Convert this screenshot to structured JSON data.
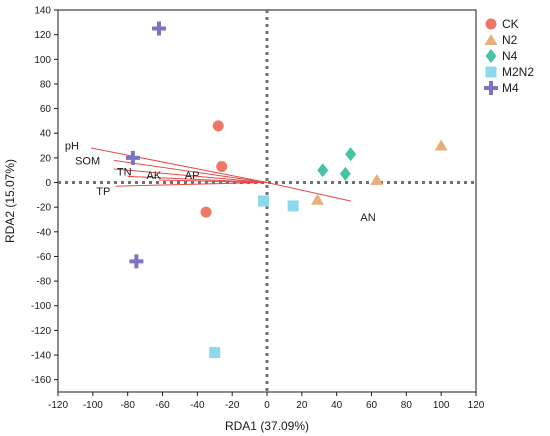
{
  "chart_data": {
    "type": "scatter",
    "xlabel": "RDA1 (37.09%)",
    "ylabel": "RDA2 (15.07%)",
    "xlim": [
      -120,
      120
    ],
    "ylim": [
      -170,
      140
    ],
    "xticks": [
      -120,
      -100,
      -80,
      -60,
      -40,
      -20,
      0,
      20,
      40,
      60,
      80,
      100,
      120
    ],
    "yticks": [
      140,
      120,
      100,
      80,
      60,
      40,
      20,
      0,
      -20,
      -40,
      -60,
      -80,
      -100,
      -120,
      -140,
      -160
    ],
    "zero_lines": "dotted",
    "legend_position": "top-right",
    "series": [
      {
        "name": "CK",
        "marker": "circle",
        "color": "#ee7766",
        "points": [
          [
            -28,
            46
          ],
          [
            -26,
            13
          ],
          [
            -35,
            -24
          ]
        ]
      },
      {
        "name": "N2",
        "marker": "triangle",
        "color": "#e8b078",
        "points": [
          [
            100,
            30
          ],
          [
            63,
            2
          ],
          [
            29,
            -14
          ]
        ]
      },
      {
        "name": "N4",
        "marker": "diamond",
        "color": "#44c4a4",
        "points": [
          [
            32,
            10
          ],
          [
            48,
            23
          ],
          [
            45,
            7
          ]
        ]
      },
      {
        "name": "M2N2",
        "marker": "square",
        "color": "#8ed8ee",
        "points": [
          [
            -2,
            -15
          ],
          [
            15,
            -19
          ],
          [
            -30,
            -138
          ]
        ]
      },
      {
        "name": "M4",
        "marker": "plus",
        "color": "#7c73c2",
        "points": [
          [
            -62,
            125
          ],
          [
            -77,
            20
          ],
          [
            -75,
            -64
          ]
        ]
      }
    ],
    "env_arrows": {
      "color": "#e84a4a",
      "label_color": "#1a1a1a",
      "vectors": [
        {
          "label": "pH",
          "end": [
            -101,
            28
          ],
          "label_at": [
            -112,
            30
          ]
        },
        {
          "label": "SOM",
          "end": [
            -88,
            18
          ],
          "label_at": [
            -103,
            18
          ]
        },
        {
          "label": "TN",
          "end": [
            -88,
            11
          ],
          "label_at": [
            -82,
            9
          ]
        },
        {
          "label": "AK",
          "end": [
            -80,
            5
          ],
          "label_at": [
            -65,
            6
          ]
        },
        {
          "label": "AP",
          "end": [
            -62,
            2
          ],
          "label_at": [
            -43,
            6
          ]
        },
        {
          "label": "TP",
          "end": [
            -87,
            -3
          ],
          "label_at": [
            -94,
            -7
          ]
        },
        {
          "label": "AN",
          "end": [
            48,
            -15
          ],
          "label_at": [
            58,
            -28
          ]
        }
      ]
    }
  }
}
